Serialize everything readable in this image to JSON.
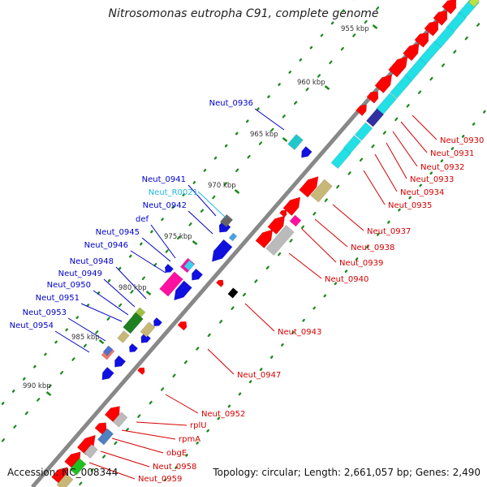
{
  "title": "Nitrosomonas eutropha C91, complete genome",
  "footer": {
    "accession": "Accession: NC_008344",
    "topology": "Topology: circular; Length: 2,661,057 bp; Genes: 2,490"
  },
  "colors": {
    "backbone": "#888888",
    "forward_label": "#0000c8",
    "reverse_label": "#d40000",
    "rna_label": "#22b8d8",
    "tick": "#1a8a1a",
    "forward_cds": "#1010e0",
    "reverse_cds": "#ff0000",
    "cyan": "#22e0e6",
    "grey": "#bbbbbb",
    "olive": "#c8b878",
    "magenta": "#ff10a0",
    "green": "#20c020",
    "darkgreen": "#208020",
    "navy": "#3030a0",
    "steelblue": "#5080c0"
  },
  "kbp_labels": [
    "955 kbp",
    "960 kbp",
    "965 kbp",
    "970 kbp",
    "975 kbp",
    "980 kbp",
    "985 kbp",
    "990 kbp"
  ],
  "forward_genes": [
    "Neut_0936",
    "Neut_0941",
    "Neut_0942",
    "def",
    "Neut_0945",
    "Neut_0946",
    "Neut_0948",
    "Neut_0949",
    "Neut_0950",
    "Neut_0951",
    "Neut_0953",
    "Neut_0954"
  ],
  "rna_genes": [
    "Neut_R0021"
  ],
  "reverse_genes": [
    "Neut_0930",
    "Neut_0931",
    "Neut_0932",
    "Neut_0933",
    "Neut_0934",
    "Neut_0935",
    "Neut_0937",
    "Neut_0938",
    "Neut_0939",
    "Neut_0940",
    "Neut_0943",
    "Neut_0947",
    "Neut_0952",
    "rplU",
    "rpmA",
    "obgE",
    "Neut_0958",
    "Neut_0959"
  ]
}
